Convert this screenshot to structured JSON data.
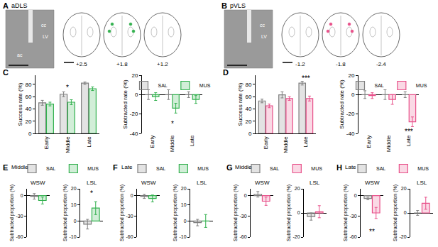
{
  "atlas": [
    {
      "panel": "A",
      "region": "aDLS",
      "photo_labels": [
        "cc",
        "LV",
        "ac"
      ],
      "coordinates": [
        "+2.5",
        "+1.8",
        "+1.2"
      ],
      "color": "#33b14f"
    },
    {
      "panel": "B",
      "region": "pVLS",
      "photo_labels": [
        "cc",
        "LV"
      ],
      "coordinates": [
        "-1.2",
        "-1.8",
        "-2.4"
      ],
      "color": "#e8508a"
    }
  ],
  "chart_data": [
    {
      "type": "bar",
      "panel": "C",
      "categories": [
        "Early",
        "Middle",
        "Late"
      ],
      "ylabel": "Success rate (%)",
      "ylim": [
        0,
        95
      ],
      "yticks": [
        0,
        20,
        40,
        60,
        80
      ],
      "grid": false,
      "series": [
        {
          "name": "SAL",
          "color": "#7f7f7f",
          "values": [
            50,
            64,
            82
          ],
          "errors": [
            4,
            4,
            2
          ]
        },
        {
          "name": "MUS",
          "color": "#33b14f",
          "values": [
            48,
            51,
            73
          ],
          "errors": [
            3,
            4,
            3
          ]
        }
      ],
      "annotations": [
        {
          "text": "*",
          "category": 1,
          "y": 75
        }
      ]
    },
    {
      "type": "bar",
      "categories": [
        "Early",
        "Middle",
        "Late"
      ],
      "ylabel": "Subtracted rate (%)",
      "ylim": [
        -40,
        20
      ],
      "yticks": [
        -40,
        -20,
        0,
        20
      ],
      "grid": false,
      "legend": "top",
      "series": [
        {
          "name": "SAL",
          "color": "#7f7f7f",
          "values": [
            0,
            0,
            0
          ],
          "errors": [
            5,
            5,
            3
          ]
        },
        {
          "name": "MUS",
          "color": "#33b14f",
          "values": [
            -2,
            -14,
            -5
          ],
          "errors": [
            4,
            5,
            4
          ]
        }
      ],
      "annotations": [
        {
          "text": "*",
          "category": 1,
          "y": -30
        }
      ]
    },
    {
      "type": "bar",
      "panel": "D",
      "categories": [
        "Early",
        "Middle",
        "Late"
      ],
      "ylabel": "Success rate (%)",
      "ylim": [
        0,
        95
      ],
      "yticks": [
        0,
        20,
        40,
        60,
        80
      ],
      "grid": false,
      "series": [
        {
          "name": "SAL",
          "color": "#7f7f7f",
          "values": [
            53,
            63,
            82
          ],
          "errors": [
            3,
            5,
            3
          ]
        },
        {
          "name": "MUS",
          "color": "#e8508a",
          "values": [
            45,
            57,
            57
          ],
          "errors": [
            3,
            3,
            4
          ]
        }
      ],
      "annotations": [
        {
          "text": "***",
          "category": 2,
          "y": 90
        }
      ]
    },
    {
      "type": "bar",
      "categories": [
        "Early",
        "Middle",
        "Late"
      ],
      "ylabel": "Subtracted rate (%)",
      "ylim": [
        -40,
        20
      ],
      "yticks": [
        -40,
        -20,
        0,
        20
      ],
      "grid": false,
      "legend": "top",
      "series": [
        {
          "name": "SAL",
          "color": "#7f7f7f",
          "values": [
            0,
            0,
            0
          ],
          "errors": [
            4,
            5,
            3
          ]
        },
        {
          "name": "MUS",
          "color": "#e8508a",
          "values": [
            -1,
            -5,
            -28
          ],
          "errors": [
            3,
            5,
            5
          ]
        }
      ],
      "annotations": [
        {
          "text": "***",
          "category": 2,
          "y": -38
        }
      ]
    },
    {
      "type": "bar",
      "panel": "E",
      "header": "Middle",
      "title": "WSW",
      "categories": [
        null
      ],
      "tick_labels": "y",
      "ylabel": "Subtracted proportion (%)",
      "ylim": [
        -60,
        10
      ],
      "yticks": [
        -60,
        -30,
        0
      ],
      "grid": false,
      "series": [
        {
          "name": "SAL",
          "color": "#7f7f7f",
          "values": [
            -1
          ],
          "errors": [
            4
          ]
        },
        {
          "name": "MUS",
          "color": "#33b14f",
          "values": [
            -7
          ],
          "errors": [
            5
          ]
        }
      ]
    },
    {
      "type": "bar",
      "title": "LSL",
      "categories": [
        null
      ],
      "tick_labels": "y",
      "ylabel": "Subtracted proportion (%)",
      "ylim": [
        -10,
        20
      ],
      "yticks": [
        -10,
        0,
        10,
        20
      ],
      "grid": false,
      "legend": "top right",
      "series": [
        {
          "name": "SAL",
          "color": "#7f7f7f",
          "values": [
            -2
          ],
          "errors": [
            3
          ]
        },
        {
          "name": "MUS",
          "color": "#33b14f",
          "values": [
            8
          ],
          "errors": [
            4
          ]
        }
      ],
      "annotations": [
        {
          "text": "*",
          "category": 0,
          "y": 17
        }
      ]
    },
    {
      "type": "bar",
      "panel": "F",
      "header": "Late",
      "title": "WSW",
      "categories": [
        null
      ],
      "tick_labels": "y",
      "ylabel": "Subtracted proportion (%)",
      "ylim": [
        -60,
        10
      ],
      "yticks": [
        -60,
        -30,
        0
      ],
      "grid": false,
      "series": [
        {
          "name": "SAL",
          "color": "#7f7f7f",
          "values": [
            -1
          ],
          "errors": [
            3
          ]
        },
        {
          "name": "MUS",
          "color": "#33b14f",
          "values": [
            -4
          ],
          "errors": [
            5
          ]
        }
      ]
    },
    {
      "type": "bar",
      "title": "LSL",
      "categories": [
        null
      ],
      "tick_labels": "y",
      "ylabel": "Subtracted proportion (%)",
      "ylim": [
        -10,
        20
      ],
      "yticks": [
        -10,
        0,
        10,
        20
      ],
      "grid": false,
      "legend": "top right",
      "series": [
        {
          "name": "SAL",
          "color": "#7f7f7f",
          "values": [
            -1
          ],
          "errors": [
            2
          ]
        },
        {
          "name": "MUS",
          "color": "#33b14f",
          "values": [
            0
          ],
          "errors": [
            4
          ]
        }
      ]
    },
    {
      "type": "bar",
      "panel": "G",
      "header": "Middle",
      "title": "WSW",
      "categories": [
        null
      ],
      "tick_labels": "y",
      "ylabel": "Subtracted proportion (%)",
      "ylim": [
        -60,
        10
      ],
      "yticks": [
        -60,
        -30,
        0
      ],
      "grid": false,
      "series": [
        {
          "name": "SAL",
          "color": "#7f7f7f",
          "values": [
            2
          ],
          "errors": [
            4
          ]
        },
        {
          "name": "MUS",
          "color": "#e8508a",
          "values": [
            -8
          ],
          "errors": [
            6
          ]
        }
      ]
    },
    {
      "type": "bar",
      "title": "LSL",
      "categories": [
        null
      ],
      "tick_labels": "y",
      "ylabel": "Subtracted proportion (%)",
      "ylim": [
        -20,
        20
      ],
      "yticks": [
        -20,
        0,
        20
      ],
      "grid": false,
      "legend": "top right",
      "series": [
        {
          "name": "SAL",
          "color": "#7f7f7f",
          "values": [
            -3
          ],
          "errors": [
            3
          ]
        },
        {
          "name": "MUS",
          "color": "#e8508a",
          "values": [
            1
          ],
          "errors": [
            5
          ]
        }
      ]
    },
    {
      "type": "bar",
      "panel": "H",
      "header": "Late",
      "title": "WSW",
      "categories": [
        null
      ],
      "tick_labels": "y",
      "ylabel": "Subtracted proportion (%)",
      "ylim": [
        -60,
        10
      ],
      "yticks": [
        -60,
        -30,
        0
      ],
      "grid": false,
      "series": [
        {
          "name": "SAL",
          "color": "#7f7f7f",
          "values": [
            -4
          ],
          "errors": [
            2
          ]
        },
        {
          "name": "MUS",
          "color": "#e8508a",
          "values": [
            -25
          ],
          "errors": [
            8
          ]
        }
      ],
      "annotations": [
        {
          "text": "**",
          "category": 0,
          "y": -52
        }
      ]
    },
    {
      "type": "bar",
      "title": "LSL",
      "categories": [
        null
      ],
      "tick_labels": "y",
      "ylabel": "Subtracted proportion (%)",
      "ylim": [
        -20,
        20
      ],
      "yticks": [
        -20,
        0,
        20
      ],
      "grid": false,
      "legend": "top right",
      "series": [
        {
          "name": "SAL",
          "color": "#7f7f7f",
          "values": [
            0
          ],
          "errors": [
            2
          ]
        },
        {
          "name": "MUS",
          "color": "#e8508a",
          "values": [
            8
          ],
          "errors": [
            5
          ]
        }
      ]
    }
  ]
}
